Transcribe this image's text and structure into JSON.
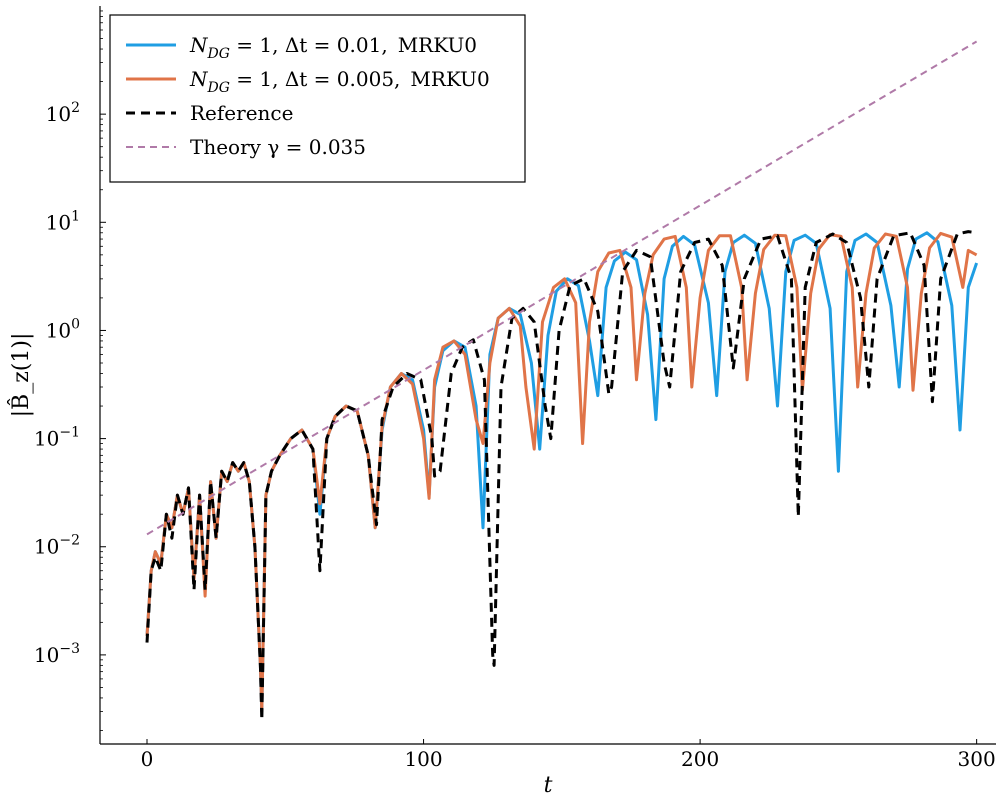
{
  "chart_data": {
    "type": "line",
    "title": "",
    "xlabel": "t",
    "ylabel": "|B̂_z(1)|",
    "yscale": "log",
    "xlim": [
      -17,
      307
    ],
    "ylim": [
      0.00015,
      1000
    ],
    "x_ticks": [
      {
        "value": 0,
        "label": "0"
      },
      {
        "value": 100,
        "label": "100"
      },
      {
        "value": 200,
        "label": "200"
      },
      {
        "value": 300,
        "label": "300"
      }
    ],
    "y_ticks": [
      {
        "value": 0.001,
        "base": "10",
        "exp": "−3"
      },
      {
        "value": 0.01,
        "base": "10",
        "exp": "−2"
      },
      {
        "value": 0.1,
        "base": "10",
        "exp": "−1"
      },
      {
        "value": 1,
        "base": "10",
        "exp": "0"
      },
      {
        "value": 10,
        "base": "10",
        "exp": "1"
      },
      {
        "value": 100,
        "base": "10",
        "exp": "2"
      }
    ],
    "legend_position": "top-left",
    "series": [
      {
        "name": "N_DG = 1, Δt = 0.01, MRKU0",
        "legend_math": "N",
        "legend_sub": "DG",
        "legend_rest": " = 1, Δt = 0.01,",
        "legend_tag": "MRKU0",
        "color": "#1f9ee3",
        "dash": "",
        "width": 3,
        "x": [
          0,
          1.5,
          3,
          5,
          7,
          9,
          11,
          13,
          15,
          17,
          19,
          21,
          23,
          25,
          27,
          29,
          31,
          33,
          35,
          37,
          39,
          41,
          41.5,
          43,
          45,
          48,
          52,
          56,
          60,
          62.5,
          65,
          68,
          72,
          76,
          80,
          82.5,
          85,
          88,
          92,
          96,
          100,
          102,
          104,
          107,
          111,
          115,
          119,
          121.5,
          124,
          127,
          131,
          135,
          139,
          142,
          145,
          148,
          152,
          156,
          160,
          163,
          166,
          169,
          173,
          177,
          181,
          184,
          187,
          190,
          194,
          198,
          203,
          206,
          209,
          212,
          216,
          220,
          225,
          228,
          231,
          234,
          238,
          242,
          247,
          250,
          253,
          256,
          260,
          264,
          269,
          272,
          275,
          278,
          282,
          286,
          291,
          294,
          297,
          300
        ],
        "y": [
          0.0015,
          0.006,
          0.009,
          0.007,
          0.02,
          0.015,
          0.03,
          0.02,
          0.035,
          0.005,
          0.03,
          0.004,
          0.04,
          0.012,
          0.05,
          0.04,
          0.06,
          0.05,
          0.06,
          0.04,
          0.01,
          0.0008,
          0.0003,
          0.03,
          0.05,
          0.07,
          0.1,
          0.12,
          0.08,
          0.02,
          0.1,
          0.16,
          0.2,
          0.18,
          0.07,
          0.015,
          0.12,
          0.3,
          0.4,
          0.35,
          0.12,
          0.03,
          0.3,
          0.65,
          0.8,
          0.7,
          0.2,
          0.015,
          0.6,
          1.3,
          1.6,
          1.4,
          0.5,
          0.08,
          0.9,
          2.3,
          3.0,
          2.6,
          0.8,
          0.25,
          2.5,
          4.4,
          5.3,
          4.5,
          1.4,
          0.15,
          3.0,
          6.0,
          7.4,
          6.2,
          1.8,
          0.25,
          3.5,
          6.5,
          7.6,
          6.4,
          1.6,
          0.2,
          3.5,
          6.8,
          7.6,
          6.4,
          1.6,
          0.05,
          3.5,
          6.8,
          7.8,
          6.5,
          1.7,
          0.3,
          3.7,
          7.0,
          8.0,
          6.6,
          1.7,
          0.12,
          2.5,
          4.2
        ]
      },
      {
        "name": "N_DG = 1, Δt = 0.005, MRKU0",
        "legend_math": "N",
        "legend_sub": "DG",
        "legend_rest": " = 1, Δt = 0.005,",
        "legend_tag": "MRKU0",
        "color": "#e07448",
        "dash": "",
        "width": 3,
        "x": [
          0,
          1.5,
          3,
          5,
          7,
          9,
          11,
          13,
          15,
          17,
          19,
          21,
          23,
          25,
          27,
          29,
          31,
          33,
          35,
          37,
          39,
          41,
          41.5,
          43,
          45,
          48,
          52,
          56,
          60,
          62.5,
          65,
          68,
          72,
          76,
          80,
          82.5,
          85,
          88,
          92,
          96,
          100,
          102,
          104,
          107,
          111,
          115,
          119,
          121.5,
          124,
          127,
          131,
          135,
          137,
          140,
          143,
          147,
          151,
          155,
          157.5,
          160,
          163,
          167,
          171,
          175,
          177,
          180,
          183,
          187,
          191,
          195,
          197,
          200,
          203,
          207,
          211,
          215,
          217,
          220,
          223,
          227,
          231,
          235,
          237,
          240,
          243,
          247,
          251,
          255,
          257,
          260,
          263,
          267,
          271,
          275,
          277,
          280,
          283,
          287,
          291,
          295,
          297,
          300
        ],
        "y": [
          0.0015,
          0.006,
          0.009,
          0.007,
          0.02,
          0.015,
          0.03,
          0.02,
          0.035,
          0.005,
          0.03,
          0.0035,
          0.04,
          0.012,
          0.05,
          0.04,
          0.06,
          0.05,
          0.06,
          0.04,
          0.01,
          0.0008,
          0.0003,
          0.03,
          0.05,
          0.07,
          0.1,
          0.12,
          0.08,
          0.025,
          0.1,
          0.16,
          0.2,
          0.18,
          0.07,
          0.015,
          0.13,
          0.3,
          0.4,
          0.32,
          0.1,
          0.028,
          0.35,
          0.7,
          0.8,
          0.6,
          0.15,
          0.09,
          0.5,
          1.3,
          1.6,
          1.1,
          0.3,
          0.08,
          1.2,
          2.5,
          3.0,
          1.8,
          0.09,
          1.2,
          3.5,
          5.2,
          5.5,
          2.5,
          0.35,
          2.2,
          5.0,
          7.0,
          7.4,
          2.5,
          0.3,
          2.0,
          5.5,
          7.5,
          7.5,
          2.5,
          0.35,
          2.2,
          5.6,
          7.6,
          7.5,
          2.5,
          0.28,
          2.2,
          5.7,
          7.7,
          7.4,
          2.5,
          0.3,
          2.2,
          5.8,
          7.8,
          7.4,
          2.5,
          0.28,
          2.2,
          5.8,
          7.9,
          7.3,
          2.5,
          5.5,
          5.0
        ]
      },
      {
        "name": "Reference",
        "legend_math": "",
        "legend_sub": "",
        "legend_rest": "Reference",
        "legend_tag": "",
        "color": "#000000",
        "dash": "9,6",
        "width": 3,
        "x": [
          0,
          1.5,
          3,
          5,
          7,
          9,
          11,
          13,
          15,
          17,
          19,
          21,
          23,
          25,
          27,
          29,
          31,
          33,
          35,
          37,
          39,
          41,
          41.5,
          43,
          45,
          48,
          52,
          56,
          60,
          62.5,
          65,
          68,
          72,
          76,
          80,
          83,
          85,
          89,
          94,
          99,
          103,
          104,
          106,
          110,
          114,
          118,
          122,
          125,
          125.5,
          128,
          132,
          136,
          140,
          144,
          146,
          149,
          153,
          158,
          163,
          167,
          168,
          172,
          177,
          182,
          187,
          189,
          193,
          198,
          203,
          208,
          212,
          216,
          222,
          228,
          233,
          235.5,
          238,
          242,
          248,
          253,
          258,
          261,
          264,
          270,
          276,
          281,
          284,
          287,
          293,
          297,
          300
        ],
        "y": [
          0.0013,
          0.006,
          0.008,
          0.006,
          0.02,
          0.012,
          0.03,
          0.02,
          0.035,
          0.004,
          0.03,
          0.004,
          0.04,
          0.012,
          0.05,
          0.04,
          0.06,
          0.05,
          0.06,
          0.04,
          0.01,
          0.0008,
          0.00025,
          0.03,
          0.05,
          0.07,
          0.1,
          0.12,
          0.08,
          0.006,
          0.1,
          0.16,
          0.2,
          0.18,
          0.07,
          0.016,
          0.15,
          0.3,
          0.4,
          0.35,
          0.1,
          0.045,
          0.05,
          0.4,
          0.7,
          0.82,
          0.35,
          0.001,
          0.0008,
          0.3,
          1.3,
          1.6,
          1.2,
          0.2,
          0.1,
          1.0,
          2.6,
          3.0,
          1.5,
          0.26,
          0.3,
          3.5,
          5.5,
          4.8,
          0.5,
          0.3,
          3.5,
          6.5,
          7.0,
          4.0,
          0.45,
          3.0,
          7.0,
          7.5,
          3.0,
          0.019,
          2.5,
          6.5,
          7.8,
          6.5,
          2.0,
          0.3,
          3.0,
          7.5,
          8.0,
          4.0,
          0.22,
          3.0,
          7.8,
          8.2,
          8.0
        ]
      },
      {
        "name": "Theory γ = 0.035",
        "legend_math": "",
        "legend_sub": "",
        "legend_rest": "Theory γ = 0.035",
        "legend_tag": "",
        "color": "#b07aa8",
        "dash": "7,5",
        "width": 2,
        "x": [
          0,
          50,
          100,
          150,
          200,
          250,
          300
        ],
        "y": [
          0.013,
          0.075,
          0.43,
          2.5,
          14.3,
          82,
          470
        ]
      }
    ]
  }
}
